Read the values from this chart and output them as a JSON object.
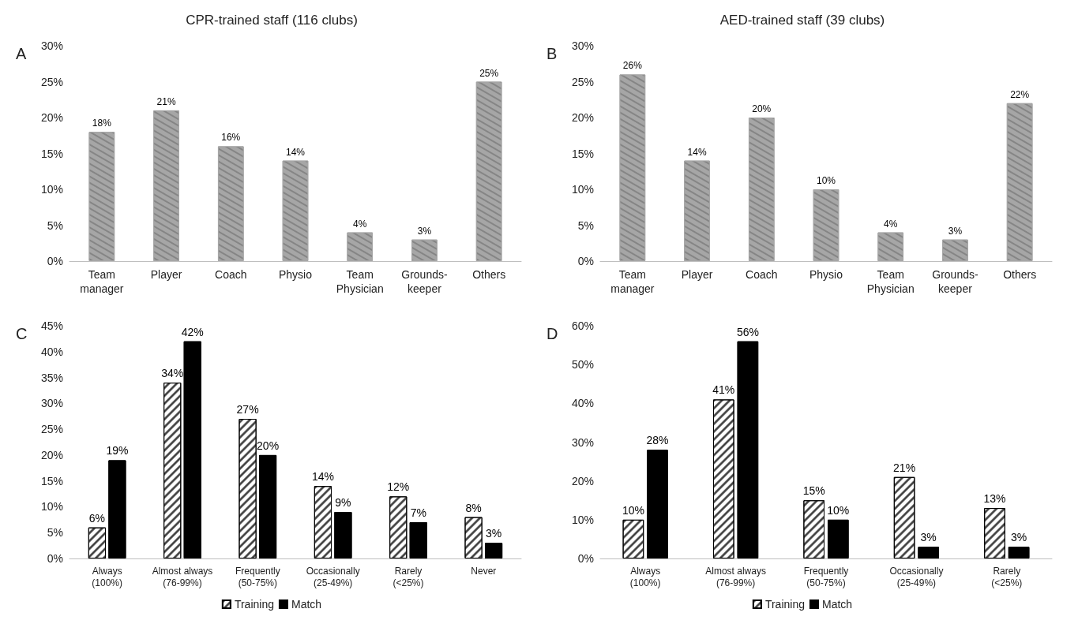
{
  "chart_data": [
    {
      "type": "bar",
      "title": "CPR-trained staff (116 clubs)",
      "annotations": [
        "A"
      ],
      "categories": [
        "Team manager",
        "Player",
        "Coach",
        "Physio",
        "Team Physician",
        "Grounds-keeper",
        "Others"
      ],
      "series": [
        {
          "color": "#a6a6a6",
          "values": [
            18,
            21,
            16,
            14,
            4,
            3,
            25
          ],
          "value_labels": [
            "18%",
            "21%",
            "16%",
            "14%",
            "4%",
            "3%",
            "25%"
          ]
        }
      ],
      "ylim": [
        0,
        30
      ],
      "yticks": [
        {
          "value": 0,
          "label": "0%"
        },
        {
          "value": 5,
          "label": "5%"
        },
        {
          "value": 10,
          "label": "10%"
        },
        {
          "value": 15,
          "label": "15%"
        },
        {
          "value": 20,
          "label": "20%"
        },
        {
          "value": 25,
          "label": "25%"
        },
        {
          "value": 30,
          "label": "30%"
        }
      ],
      "grid": false,
      "legend": false
    },
    {
      "type": "bar",
      "title": "AED-trained staff (39 clubs)",
      "annotations": [
        "B"
      ],
      "categories": [
        "Team manager",
        "Player",
        "Coach",
        "Physio",
        "Team Physician",
        "Grounds-keeper",
        "Others"
      ],
      "series": [
        {
          "color": "#a6a6a6",
          "values": [
            26,
            14,
            20,
            10,
            4,
            3,
            22
          ],
          "value_labels": [
            "26%",
            "14%",
            "20%",
            "10%",
            "4%",
            "3%",
            "22%"
          ]
        }
      ],
      "ylim": [
        0,
        30
      ],
      "yticks": [
        {
          "value": 0,
          "label": "0%"
        },
        {
          "value": 5,
          "label": "5%"
        },
        {
          "value": 10,
          "label": "10%"
        },
        {
          "value": 15,
          "label": "15%"
        },
        {
          "value": 20,
          "label": "20%"
        },
        {
          "value": 25,
          "label": "25%"
        },
        {
          "value": 30,
          "label": "30%"
        }
      ],
      "grid": false,
      "legend": false
    },
    {
      "type": "bar",
      "annotations": [
        "C"
      ],
      "categories": [
        "Always (100%)",
        "Almost always (76-99%)",
        "Frequently (50-75%)",
        "Occasionally (25-49%)",
        "Rarely (<25%)",
        "Never"
      ],
      "series": [
        {
          "name": "Training",
          "color": "#ffffff",
          "values": [
            6,
            34,
            27,
            14,
            12,
            8
          ],
          "value_labels": [
            "6%",
            "34%",
            "27%",
            "14%",
            "12%",
            "8%"
          ]
        },
        {
          "name": "Match",
          "color": "#000000",
          "values": [
            19,
            42,
            20,
            9,
            7,
            3
          ],
          "value_labels": [
            "19%",
            "42%",
            "20%",
            "9%",
            "7%",
            "3%"
          ]
        }
      ],
      "ylim": [
        0,
        45
      ],
      "yticks": [
        {
          "value": 0,
          "label": "0%"
        },
        {
          "value": 5,
          "label": "5%"
        },
        {
          "value": 10,
          "label": "10%"
        },
        {
          "value": 15,
          "label": "15%"
        },
        {
          "value": 20,
          "label": "20%"
        },
        {
          "value": 25,
          "label": "25%"
        },
        {
          "value": 30,
          "label": "30%"
        },
        {
          "value": 35,
          "label": "35%"
        },
        {
          "value": 40,
          "label": "40%"
        },
        {
          "value": 45,
          "label": "45%"
        }
      ],
      "grid": false,
      "legend": "bottom"
    },
    {
      "type": "bar",
      "annotations": [
        "D"
      ],
      "categories": [
        "Always (100%)",
        "Almost always (76-99%)",
        "Frequently (50-75%)",
        "Occasionally (25-49%)",
        "Rarely (<25%)"
      ],
      "series": [
        {
          "name": "Training",
          "color": "#ffffff",
          "values": [
            10,
            41,
            15,
            21,
            13
          ],
          "value_labels": [
            "10%",
            "41%",
            "15%",
            "21%",
            "13%"
          ]
        },
        {
          "name": "Match",
          "color": "#000000",
          "values": [
            28,
            56,
            10,
            3,
            3
          ],
          "value_labels": [
            "28%",
            "56%",
            "10%",
            "3%",
            "3%"
          ]
        }
      ],
      "ylim": [
        0,
        60
      ],
      "yticks": [
        {
          "value": 0,
          "label": "0%"
        },
        {
          "value": 10,
          "label": "10%"
        },
        {
          "value": 20,
          "label": "20%"
        },
        {
          "value": 30,
          "label": "30%"
        },
        {
          "value": 40,
          "label": "40%"
        },
        {
          "value": 50,
          "label": "50%"
        },
        {
          "value": 60,
          "label": "60%"
        }
      ],
      "grid": false,
      "legend": "bottom"
    }
  ]
}
